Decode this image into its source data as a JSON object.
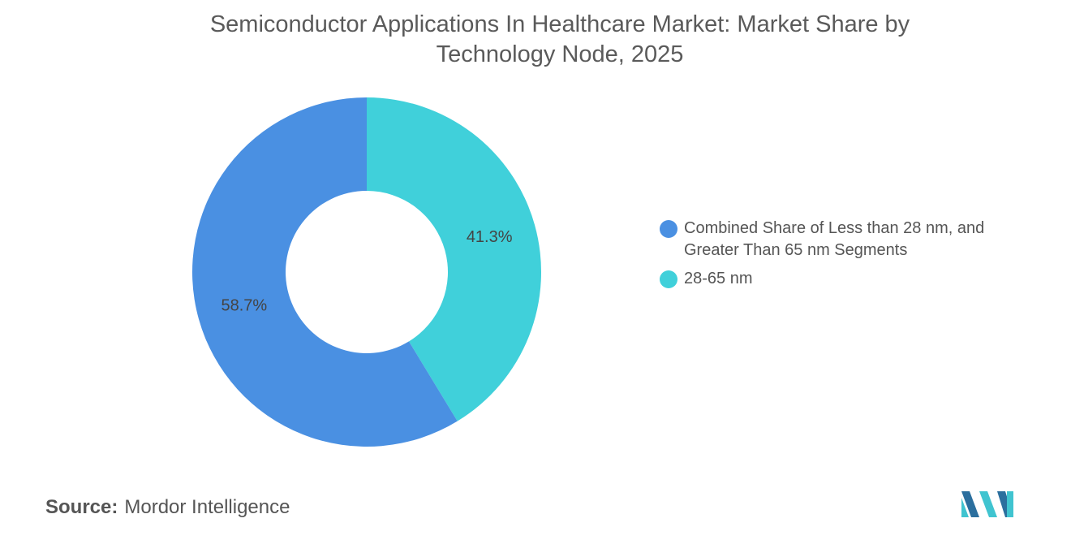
{
  "chart_data": {
    "type": "donut",
    "title": "Semiconductor Applications In Healthcare Market: Market Share by Technology Node, 2025",
    "categories": [
      "Combined Share of Less than 28 nm, and Greater Than 65 nm Segments",
      "28-65 nm"
    ],
    "values": [
      58.7,
      41.3
    ],
    "value_labels": [
      "58.7%",
      "41.3%"
    ],
    "colors": [
      "#4a90e2",
      "#40d0da"
    ],
    "source_label": "Source:",
    "source": "Mordor Intelligence"
  }
}
